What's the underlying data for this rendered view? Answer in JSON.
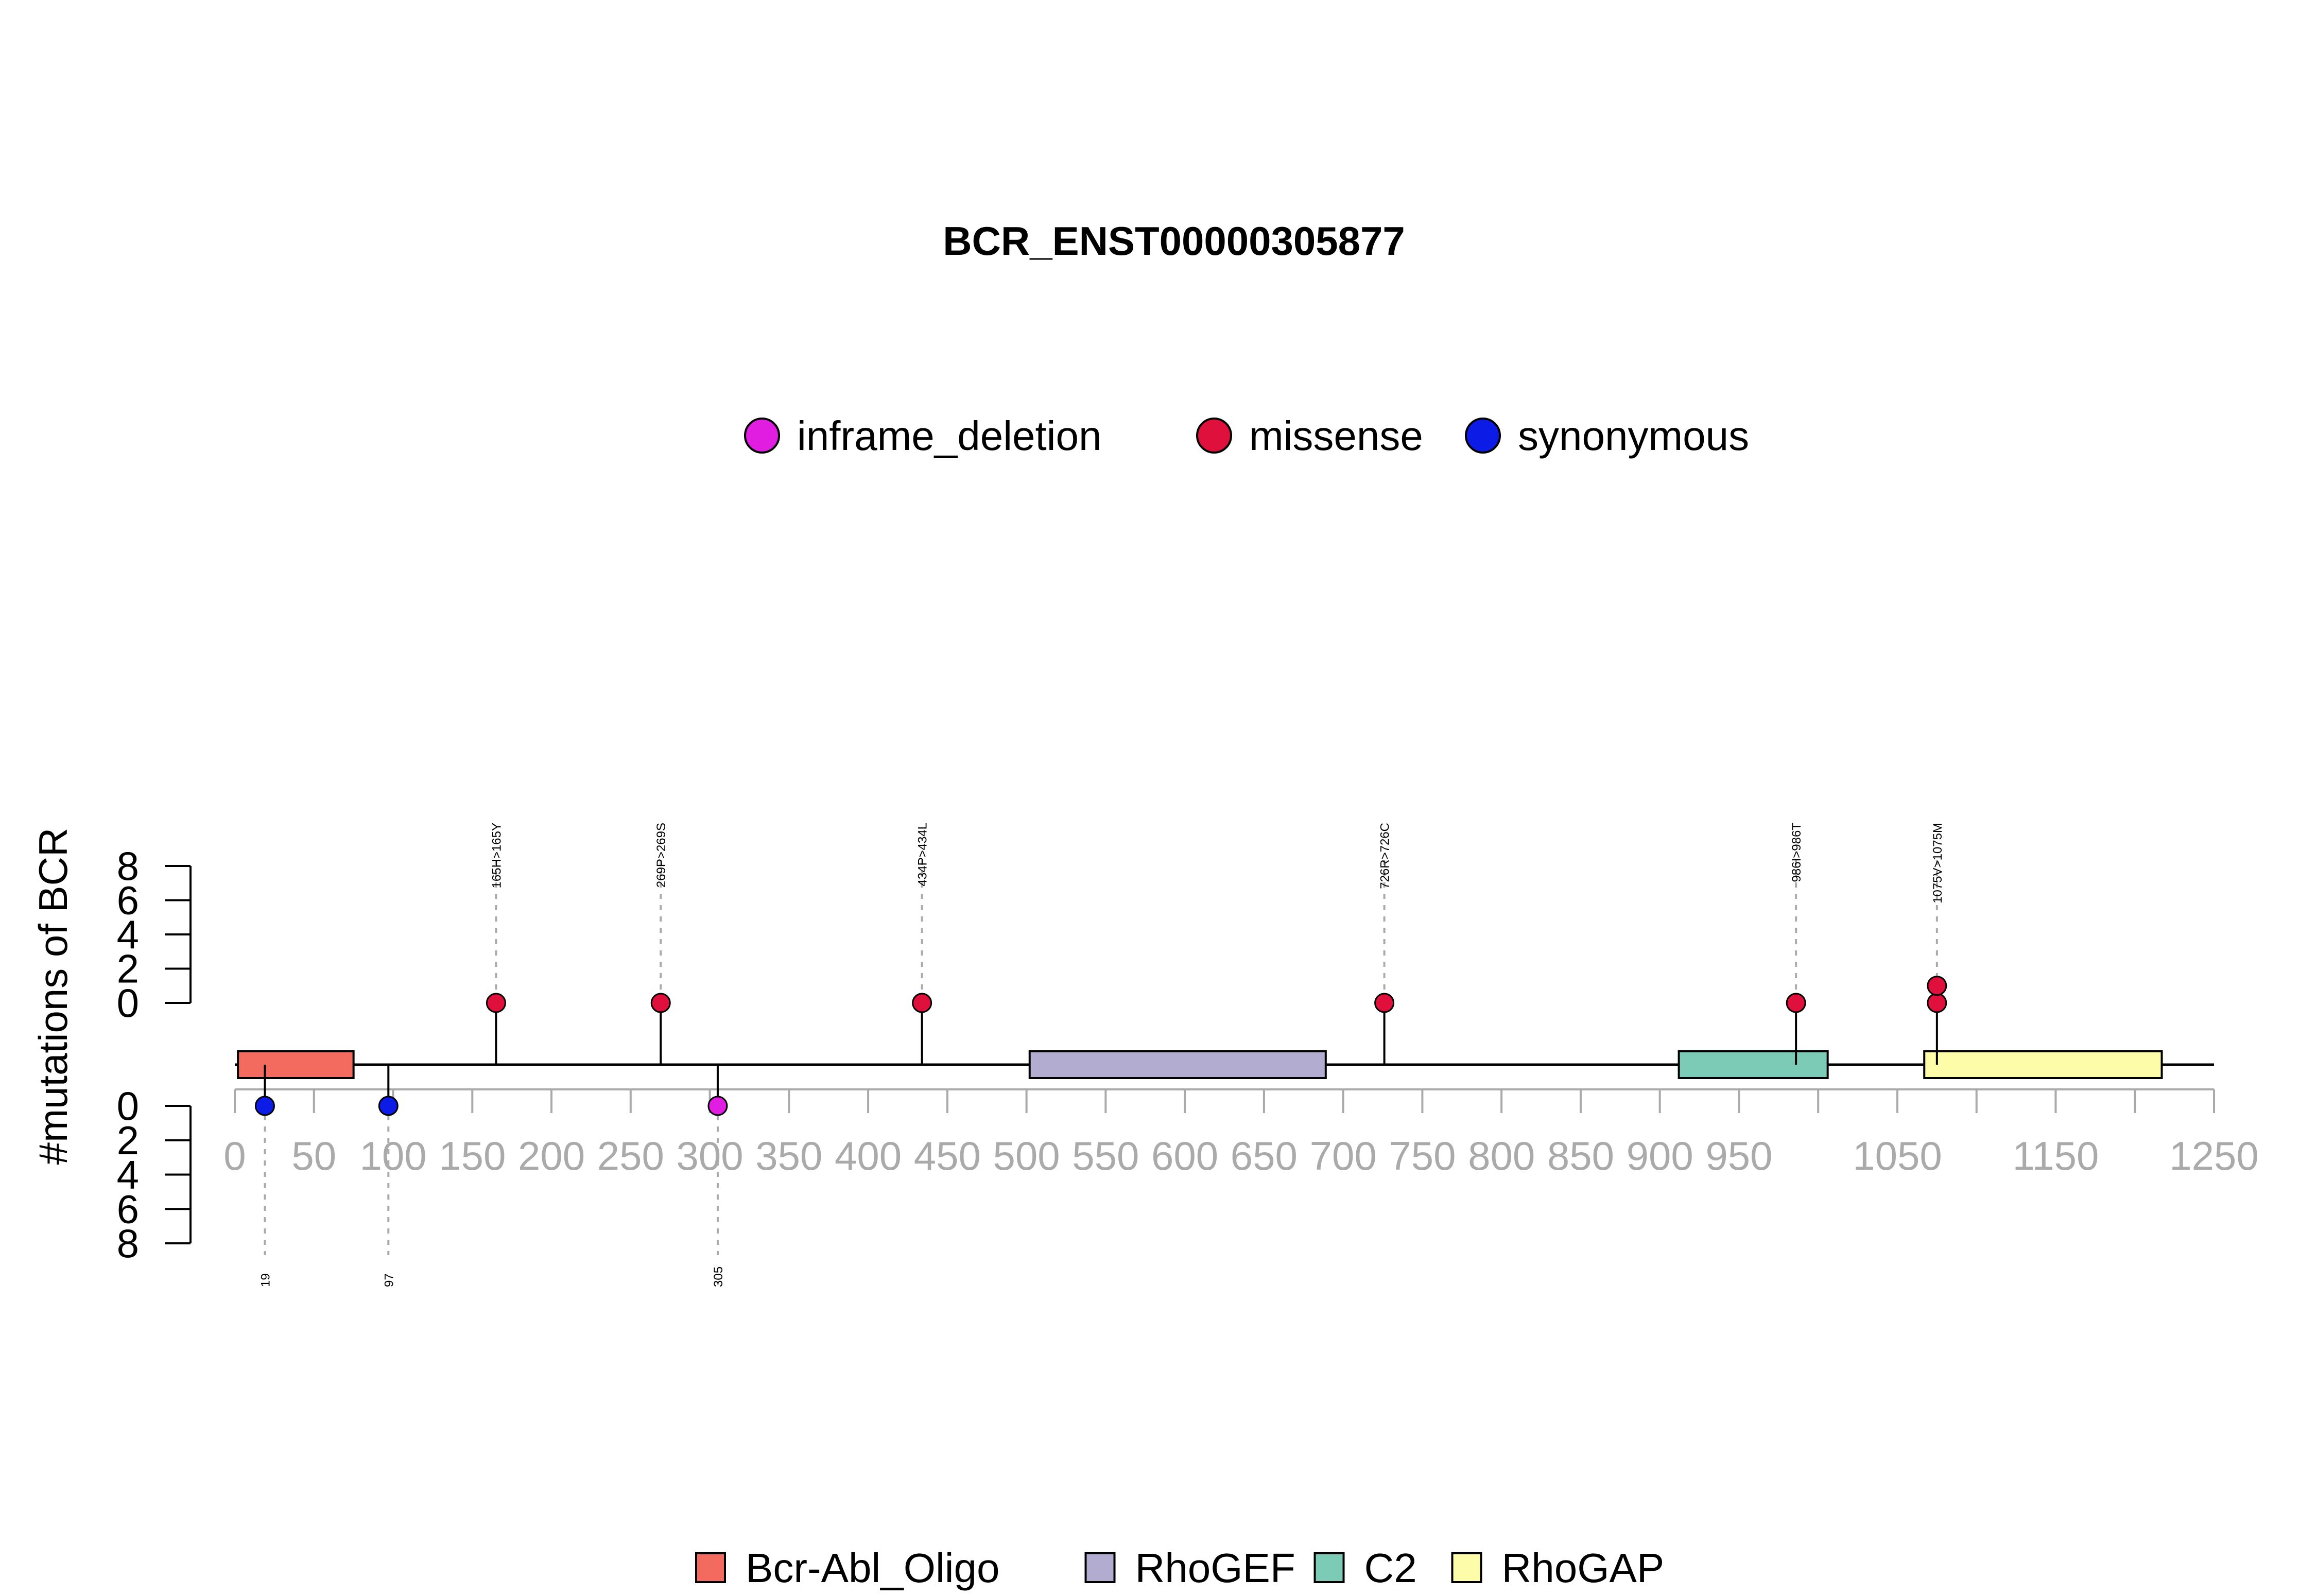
{
  "chart_data": {
    "type": "lollipop",
    "title": "BCR_ENST00000305877",
    "ylabel": "#mutations of BCR",
    "protein_length": 1250,
    "xlim": [
      0,
      1250
    ],
    "x_ticks": [
      0,
      50,
      100,
      150,
      200,
      250,
      300,
      350,
      400,
      450,
      500,
      550,
      600,
      650,
      700,
      750,
      800,
      850,
      900,
      950,
      1000,
      1050,
      1100,
      1150,
      1200,
      1250
    ],
    "x_tick_labels": [
      "0",
      "50",
      "100",
      "150",
      "200",
      "250",
      "300",
      "350",
      "400",
      "450",
      "500",
      "550",
      "600",
      "650",
      "700",
      "750",
      "800",
      "850",
      "900",
      "950",
      "",
      "1050",
      "",
      "1150",
      "",
      "1250"
    ],
    "y_ticks_upper": [
      "8",
      "6",
      "4",
      "2",
      "0"
    ],
    "y_ticks_lower": [
      "0",
      "2",
      "4",
      "6",
      "8"
    ],
    "ylim": [
      0,
      8
    ],
    "mutation_legend": [
      {
        "name": "inframe_deletion",
        "color": "#e21de2"
      },
      {
        "name": "missense",
        "color": "#e0103c"
      },
      {
        "name": "synonymous",
        "color": "#0d1be6"
      }
    ],
    "domain_legend": [
      {
        "name": "Bcr-Abl_Oligo",
        "color": "#f26b5e"
      },
      {
        "name": "RhoGEF",
        "color": "#b2acd0"
      },
      {
        "name": "C2",
        "color": "#7ccbb6"
      },
      {
        "name": "RhoGAP",
        "color": "#fdfca8"
      }
    ],
    "domains": [
      {
        "name": "Bcr-Abl_Oligo",
        "start": 2,
        "end": 75
      },
      {
        "name": "RhoGEF",
        "start": 502,
        "end": 689
      },
      {
        "name": "C2",
        "start": 912,
        "end": 1006
      },
      {
        "name": "RhoGAP",
        "start": 1067,
        "end": 1217
      }
    ],
    "mutations_upper": [
      {
        "position": 165,
        "label": "165H>165Y",
        "type": "missense",
        "count": 1
      },
      {
        "position": 269,
        "label": "269P>269S",
        "type": "missense",
        "count": 1
      },
      {
        "position": 434,
        "label": "434P>434L",
        "type": "missense",
        "count": 1
      },
      {
        "position": 726,
        "label": "726R>726C",
        "type": "missense",
        "count": 1
      },
      {
        "position": 986,
        "label": "986I>986T",
        "type": "missense",
        "count": 1
      },
      {
        "position": 1075,
        "label": "1075V>1075M",
        "type": "missense",
        "count": 2
      }
    ],
    "mutations_lower": [
      {
        "position": 19,
        "label": "19",
        "type": "synonymous",
        "count": 1
      },
      {
        "position": 97,
        "label": "97",
        "type": "synonymous",
        "count": 1
      },
      {
        "position": 305,
        "label": "305",
        "type": "inframe_deletion",
        "count": 1
      }
    ]
  }
}
